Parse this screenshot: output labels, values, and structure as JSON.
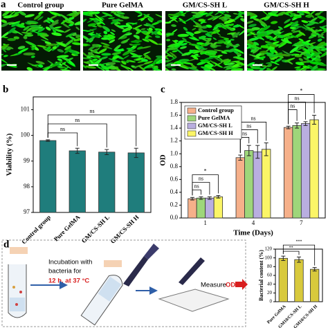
{
  "panel_a": {
    "label": "a",
    "titles": [
      "Control group",
      "Pure GelMA",
      "GM/CS-SH L",
      "GM/CS-SH H"
    ]
  },
  "chart_data": [
    {
      "panel": "b",
      "type": "bar",
      "ylabel": "Viability (%)",
      "categories": [
        "Control group",
        "Pure GelMA",
        "GM/CS-SH L",
        "GM/CS-SH H"
      ],
      "values": [
        99.8,
        99.4,
        99.35,
        99.32
      ],
      "errors": [
        0.03,
        0.1,
        0.1,
        0.18
      ],
      "color": "#1f7d7c",
      "ylim": [
        97,
        101.5
      ],
      "yticks": [
        97,
        98,
        99,
        100,
        101
      ],
      "annotations": [
        "ns",
        "ns",
        "ns"
      ]
    },
    {
      "panel": "c",
      "type": "bar",
      "ylabel": "OD",
      "xlabel": "Time (Days)",
      "categories": [
        "1",
        "4",
        "7"
      ],
      "series": [
        {
          "name": "Control group",
          "color": "#f6b08a",
          "values": [
            0.3,
            0.94,
            1.41
          ],
          "errors": [
            0.02,
            0.04,
            0.02
          ]
        },
        {
          "name": "Pure GelMA",
          "color": "#9ed67a",
          "values": [
            0.31,
            1.05,
            1.44
          ],
          "errors": [
            0.02,
            0.08,
            0.04
          ]
        },
        {
          "name": "GM/CS-SH L",
          "color": "#b9aee0",
          "values": [
            0.31,
            1.03,
            1.47
          ],
          "errors": [
            0.02,
            0.1,
            0.03
          ]
        },
        {
          "name": "GM/CS-SH H",
          "color": "#fbf567",
          "values": [
            0.33,
            1.07,
            1.53
          ],
          "errors": [
            0.02,
            0.1,
            0.07
          ]
        }
      ],
      "ylim": [
        0,
        1.8
      ],
      "yticks": [
        {
          "value": 0,
          "label": "0.0"
        },
        {
          "value": 0.2,
          "label": "0.2"
        },
        {
          "value": 0.4,
          "label": "0.4"
        },
        {
          "value": 0.6,
          "label": "0.6"
        },
        {
          "value": 0.8,
          "label": "0.8"
        },
        {
          "value": 1,
          "label": "1.0"
        },
        {
          "value": 1.2,
          "label": "1.2"
        },
        {
          "value": 1.4,
          "label": "1.4"
        },
        {
          "value": 1.6,
          "label": "1.6"
        },
        {
          "value": 1.8,
          "label": "1.8"
        }
      ],
      "annotations": [
        "ns",
        "ns",
        "*",
        "ns",
        "ns",
        "ns",
        "ns",
        "ns",
        "*"
      ]
    },
    {
      "type": "bar",
      "ylabel": "Bacterial content (%)",
      "categories": [
        "Pure GelMA",
        "GM10/CS-SH L",
        "GM10/CS-SH H"
      ],
      "values": [
        99,
        96,
        74
      ],
      "errors": [
        5,
        6,
        4
      ],
      "color": "#d8c93c",
      "ylim": [
        0,
        120
      ],
      "yticks": [
        0,
        20,
        40,
        60,
        80,
        100,
        120
      ],
      "annotations": [
        "**",
        "***"
      ]
    }
  ],
  "diagram": {
    "label": "d",
    "step1": [
      "Incubation with",
      "bacteria for"
    ],
    "step1_condition": "12 h, at 37 °C",
    "step2": "Measure",
    "step2_target": "OD"
  }
}
